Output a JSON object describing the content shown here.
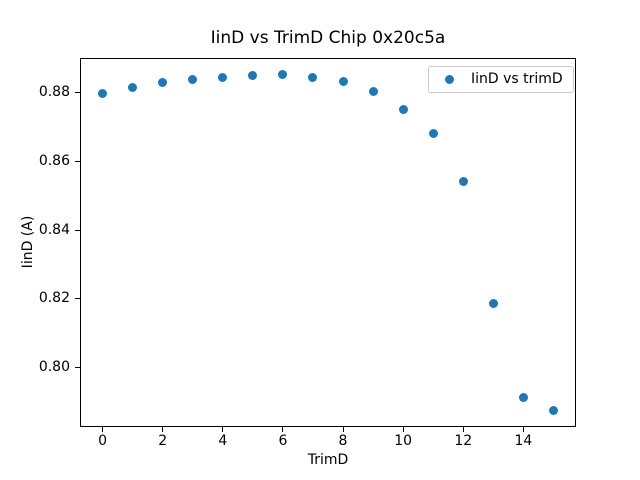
{
  "figure": {
    "background": "#ffffff",
    "text_color": "#000000"
  },
  "chart_data": {
    "type": "scatter",
    "title": "IinD vs TrimD Chip 0x20c5a",
    "xlabel": "TrimD",
    "ylabel": "IinD (A)",
    "legend": {
      "label": "IinD vs trimD",
      "position": "upper right"
    },
    "marker_color": "#1f77b4",
    "x": [
      0,
      1,
      2,
      3,
      4,
      5,
      6,
      7,
      8,
      9,
      10,
      11,
      12,
      13,
      14,
      15
    ],
    "y": [
      0.8798,
      0.8817,
      0.883,
      0.884,
      0.8844,
      0.885,
      0.8854,
      0.8844,
      0.8832,
      0.8803,
      0.8752,
      0.8683,
      0.8542,
      0.8186,
      0.7914,
      0.7875
    ],
    "xlim": [
      -0.75,
      15.75
    ],
    "ylim": [
      0.7826,
      0.8903
    ],
    "xticks": [
      0,
      2,
      4,
      6,
      8,
      10,
      12,
      14
    ],
    "xtick_labels": [
      "0",
      "2",
      "4",
      "6",
      "8",
      "10",
      "12",
      "14"
    ],
    "yticks": [
      0.8,
      0.82,
      0.84,
      0.86,
      0.88
    ],
    "ytick_labels": [
      "0.80",
      "0.82",
      "0.84",
      "0.86",
      "0.88"
    ],
    "grid": false
  }
}
